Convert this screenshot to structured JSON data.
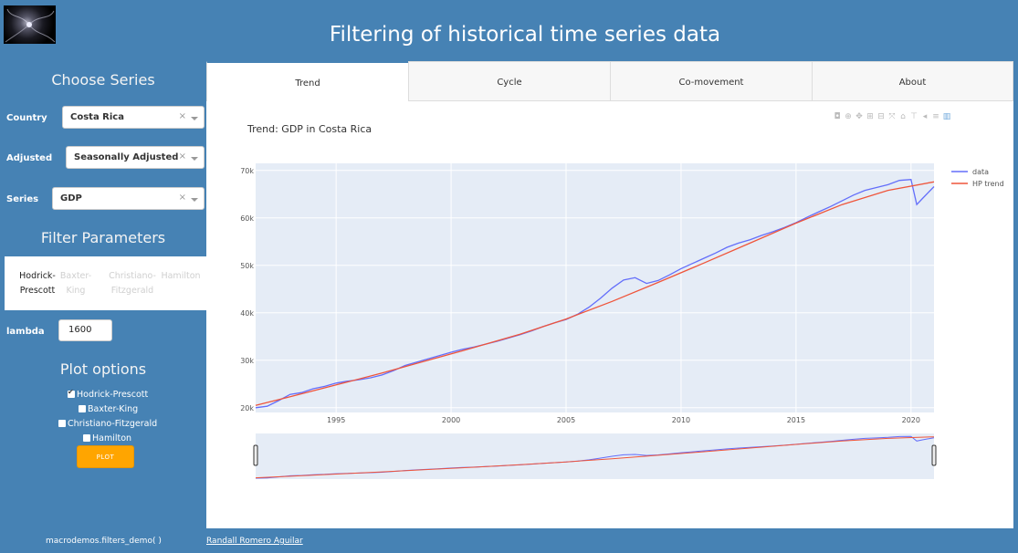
{
  "header": {
    "title": "Filtering of historical time series data"
  },
  "sidebar": {
    "choose_series_heading": "Choose Series",
    "country": {
      "label": "Country",
      "value": "Costa Rica"
    },
    "adjusted": {
      "label": "Adjusted",
      "value": "Seasonally Adjusted"
    },
    "series": {
      "label": "Series",
      "value": "GDP"
    },
    "filter_parameters_heading": "Filter Parameters",
    "filter_tabs": [
      {
        "label": "Hodrick-Prescott",
        "active": true
      },
      {
        "label": "Baxter-King",
        "active": false
      },
      {
        "label": "Christiano-Fitzgerald",
        "active": false
      },
      {
        "label": "Hamilton",
        "active": false
      }
    ],
    "lambda": {
      "label": "lambda",
      "value": "1600"
    },
    "plot_options_heading": "Plot options",
    "plot_options": [
      {
        "label": "Hodrick-Prescott",
        "checked": true
      },
      {
        "label": "Baxter-King",
        "checked": false
      },
      {
        "label": "Christiano-Fitzgerald",
        "checked": false
      },
      {
        "label": "Hamilton",
        "checked": false
      }
    ],
    "plot_button": "PLOT"
  },
  "tabs": [
    {
      "label": "Trend",
      "active": true
    },
    {
      "label": "Cycle",
      "active": false
    },
    {
      "label": "Co-movement",
      "active": false
    },
    {
      "label": "About",
      "active": false
    }
  ],
  "modebar_icons": [
    "camera-icon",
    "zoom-icon",
    "pan-icon",
    "zoom-in-icon",
    "zoom-out-icon",
    "autoscale-icon",
    "reset-axes-icon",
    "spike-lines-icon",
    "hover-closest-icon",
    "hover-compare-icon",
    "plotly-logo-icon"
  ],
  "chart_data": {
    "type": "line",
    "title": "Trend: GDP in Costa Rica",
    "xlabel": "",
    "ylabel": "",
    "xlim": [
      1991.5,
      2021.0
    ],
    "ylim": [
      19000,
      71500
    ],
    "x_ticks": [
      1995,
      2000,
      2005,
      2010,
      2015,
      2020
    ],
    "y_ticks": [
      {
        "value": 20000,
        "label": "20k"
      },
      {
        "value": 30000,
        "label": "30k"
      },
      {
        "value": 40000,
        "label": "40k"
      },
      {
        "value": 50000,
        "label": "50k"
      },
      {
        "value": 60000,
        "label": "60k"
      },
      {
        "value": 70000,
        "label": "70k"
      }
    ],
    "grid": true,
    "legend_position": "top-right",
    "range_slider": true,
    "series": [
      {
        "name": "data",
        "color": "#636efa",
        "x": [
          1991.5,
          1992.0,
          1992.5,
          1993.0,
          1993.5,
          1994.0,
          1994.5,
          1995.0,
          1995.5,
          1996.0,
          1996.5,
          1997.0,
          1997.5,
          1998.0,
          1998.5,
          1999.0,
          1999.5,
          2000.0,
          2000.5,
          2001.0,
          2001.5,
          2002.0,
          2002.5,
          2003.0,
          2003.5,
          2004.0,
          2004.5,
          2005.0,
          2005.5,
          2006.0,
          2006.5,
          2007.0,
          2007.5,
          2008.0,
          2008.5,
          2009.0,
          2009.5,
          2010.0,
          2010.5,
          2011.0,
          2011.5,
          2012.0,
          2012.5,
          2013.0,
          2013.5,
          2014.0,
          2014.5,
          2015.0,
          2015.5,
          2016.0,
          2016.5,
          2017.0,
          2017.5,
          2018.0,
          2018.5,
          2019.0,
          2019.5,
          2020.0,
          2020.25,
          2020.5,
          2021.0
        ],
        "values": [
          20000,
          20300,
          21500,
          22800,
          23200,
          24000,
          24500,
          25200,
          25600,
          25900,
          26300,
          26900,
          27800,
          28900,
          29600,
          30300,
          31000,
          31700,
          32300,
          32800,
          33400,
          34000,
          34700,
          35400,
          36200,
          37100,
          37900,
          38600,
          39700,
          41200,
          43100,
          45200,
          46900,
          47400,
          46200,
          46800,
          48000,
          49300,
          50400,
          51500,
          52600,
          53800,
          54700,
          55400,
          56300,
          57100,
          58000,
          59000,
          60200,
          61300,
          62400,
          63600,
          64800,
          65800,
          66400,
          67000,
          67900,
          68100,
          62800,
          64100,
          66600
        ]
      },
      {
        "name": "HP trend",
        "color": "#ef553b",
        "x": [
          1991.5,
          1993.0,
          1995.0,
          1997.0,
          1999.0,
          2001.0,
          2003.0,
          2005.0,
          2007.0,
          2009.0,
          2011.0,
          2013.0,
          2015.0,
          2017.0,
          2019.0,
          2021.0
        ],
        "values": [
          20500,
          22300,
          24800,
          27300,
          30000,
          32700,
          35500,
          38700,
          42400,
          46400,
          50500,
          54700,
          58900,
          62800,
          65800,
          67600
        ]
      }
    ]
  },
  "footer": {
    "left": "macrodemos.filters_demo( )",
    "right": "Randall Romero Aguilar"
  }
}
